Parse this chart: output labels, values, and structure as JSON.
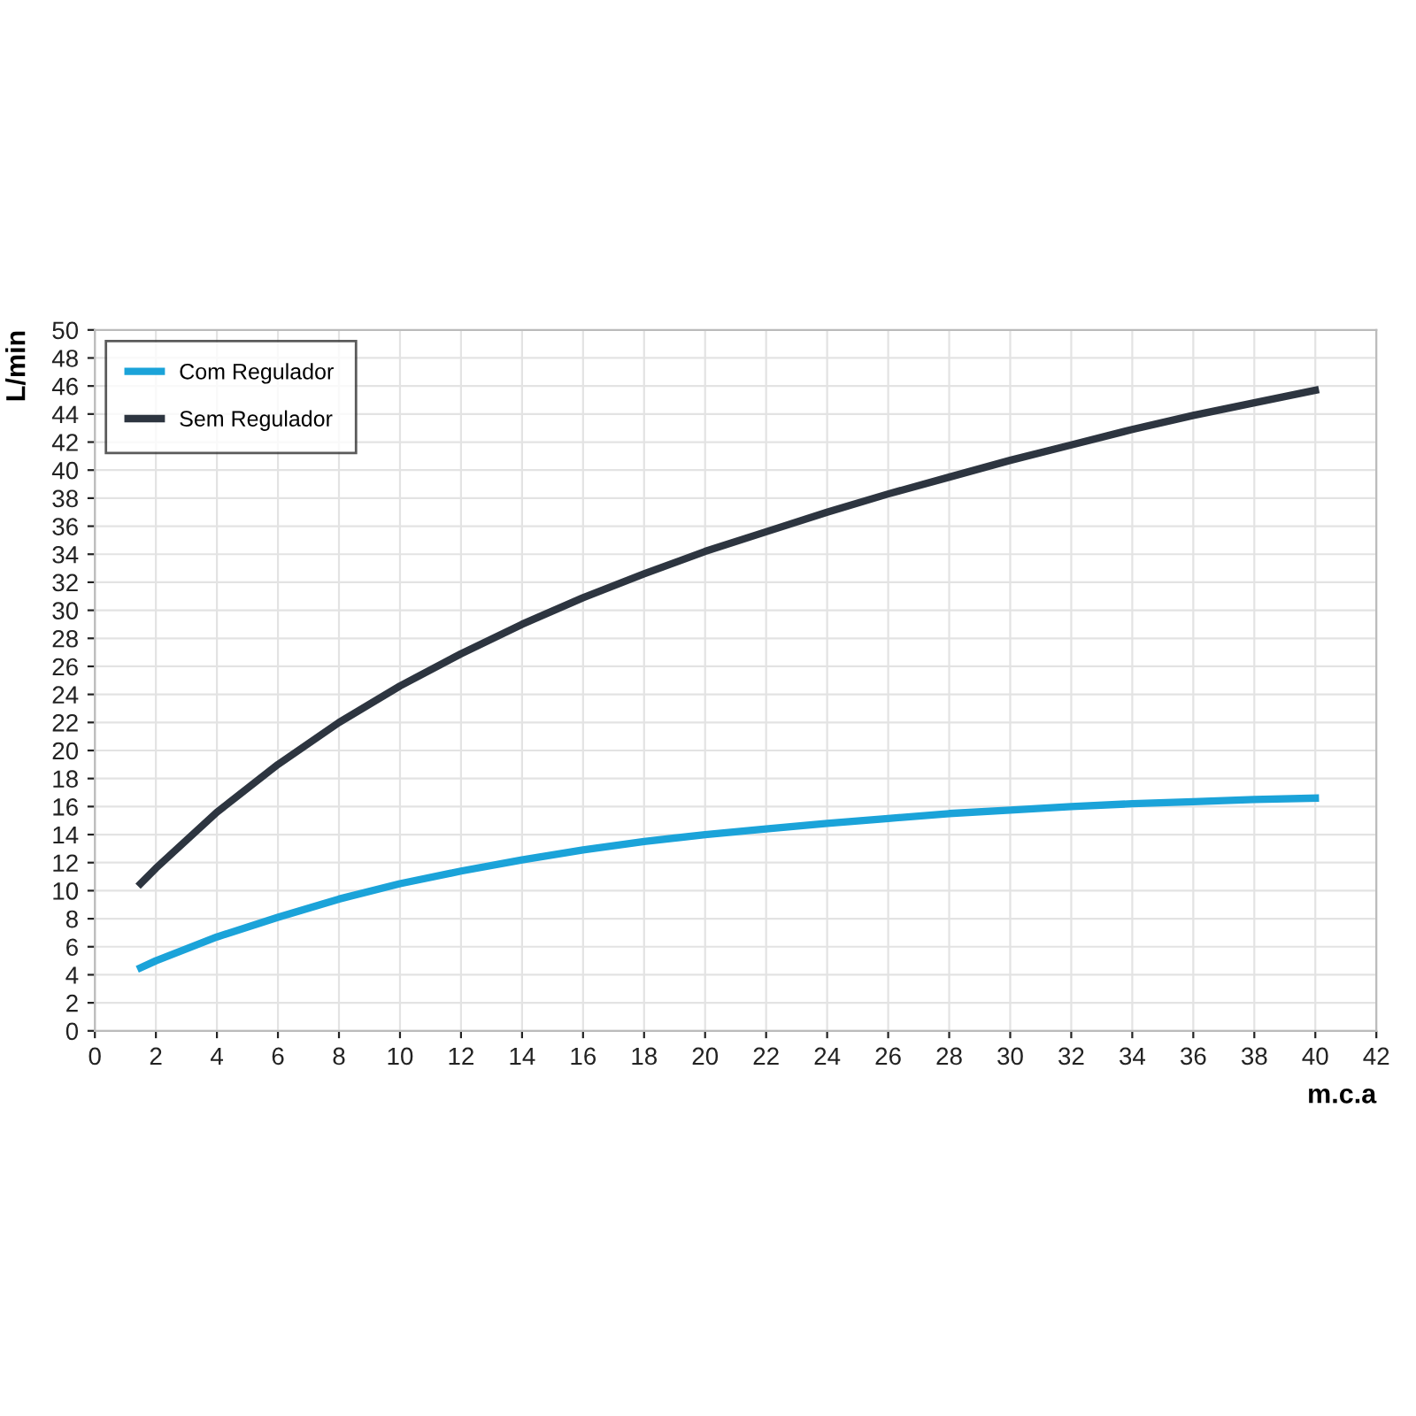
{
  "chart_data": {
    "type": "line",
    "xlabel": "m.c.a",
    "ylabel": "L/min",
    "x": [
      1.5,
      2,
      4,
      6,
      8,
      10,
      12,
      14,
      16,
      18,
      20,
      22,
      24,
      26,
      28,
      30,
      32,
      34,
      36,
      38,
      40
    ],
    "series": [
      {
        "name": "Com Regulador",
        "color": "#1ba3d9",
        "values": [
          4.5,
          5,
          6.7,
          8.1,
          9.4,
          10.5,
          11.4,
          12.2,
          12.9,
          13.5,
          14.0,
          14.4,
          14.8,
          15.15,
          15.5,
          15.75,
          16,
          16.2,
          16.35,
          16.5,
          16.6
        ]
      },
      {
        "name": "Sem Regulador",
        "color": "#2d3540",
        "values": [
          10.5,
          11.6,
          15.6,
          19,
          22,
          24.6,
          26.9,
          29,
          30.9,
          32.6,
          34.2,
          35.6,
          37,
          38.3,
          39.5,
          40.7,
          41.8,
          42.9,
          43.9,
          44.8,
          45.7
        ]
      }
    ],
    "xlim": [
      0,
      42
    ],
    "xticks": [
      0,
      2,
      4,
      6,
      8,
      10,
      12,
      14,
      16,
      18,
      20,
      22,
      24,
      26,
      28,
      30,
      32,
      34,
      36,
      38,
      40,
      42
    ],
    "ylim": [
      0,
      50
    ],
    "yticks": [
      0,
      2,
      4,
      6,
      8,
      10,
      12,
      14,
      16,
      18,
      20,
      22,
      24,
      26,
      28,
      30,
      32,
      34,
      36,
      38,
      40,
      42,
      44,
      46,
      48,
      50
    ],
    "grid": true,
    "legend": "top left",
    "marker": "none",
    "line_style": "solid"
  }
}
